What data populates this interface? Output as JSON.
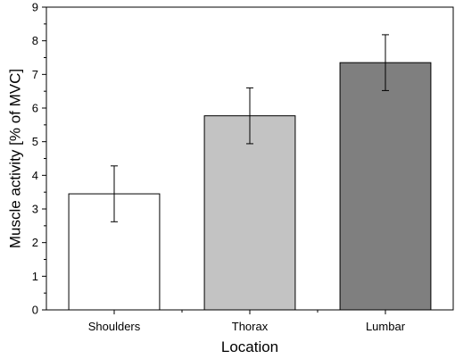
{
  "chart_data": {
    "type": "bar",
    "categories": [
      "Shoulders",
      "Thorax",
      "Lumbar"
    ],
    "values": [
      3.45,
      5.77,
      7.35
    ],
    "errors": [
      0.83,
      0.83,
      0.83
    ],
    "bar_colors": [
      "#ffffff",
      "#c3c3c3",
      "#7f7f7f"
    ],
    "xlabel": "Location",
    "ylabel": "Muscle activity [% of MVC]",
    "ylim": [
      0,
      9
    ],
    "yticks": [
      0,
      1,
      2,
      3,
      4,
      5,
      6,
      7,
      8,
      9
    ],
    "grid": false,
    "legend": "none"
  }
}
